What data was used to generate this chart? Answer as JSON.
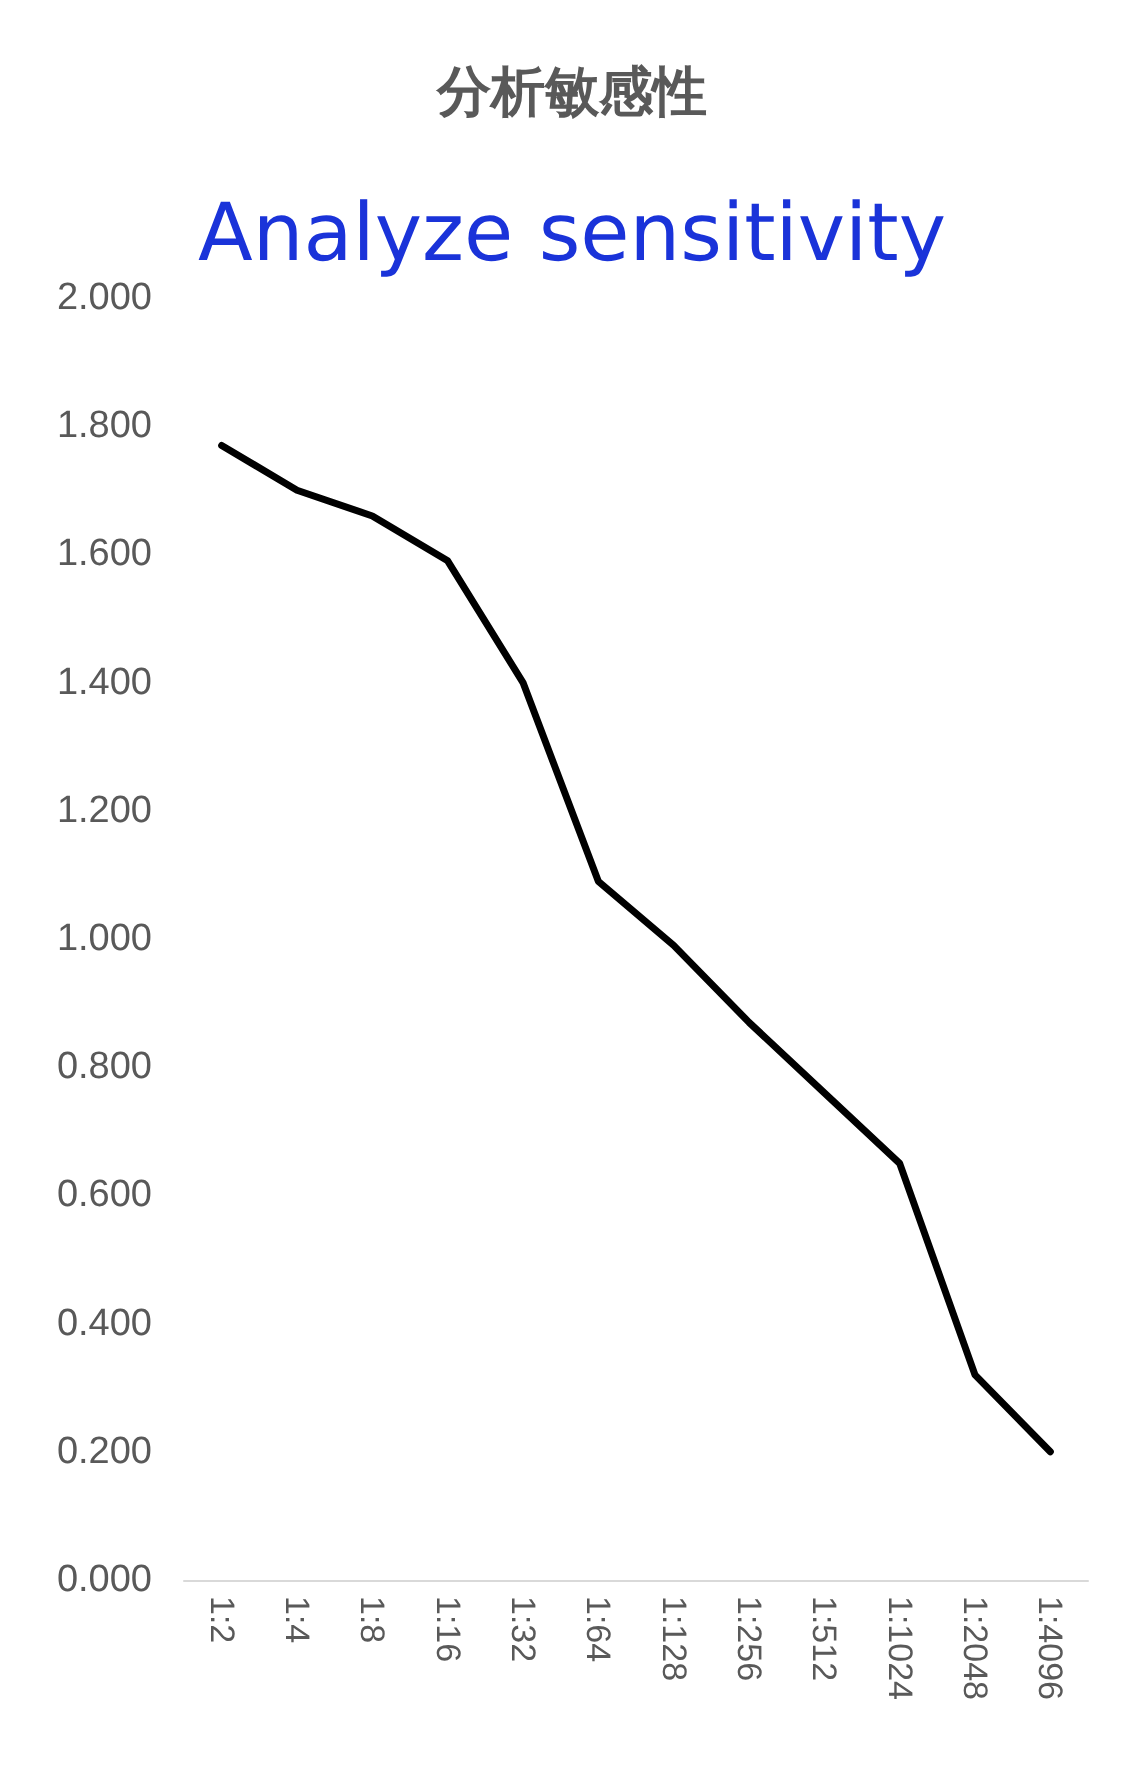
{
  "chart_data": {
    "type": "line",
    "title": "分析敏感性",
    "subtitle": "Analyze sensitivity",
    "categories": [
      "1:2",
      "1:4",
      "1:8",
      "1:16",
      "1:32",
      "1:64",
      "1:128",
      "1:256",
      "1:512",
      "1:1024",
      "1:2048",
      "1:4096"
    ],
    "series": [
      {
        "color": "#000000",
        "values": [
          1.77,
          1.7,
          1.66,
          1.59,
          1.4,
          1.09,
          0.99,
          0.87,
          0.76,
          0.65,
          0.32,
          0.2
        ]
      }
    ],
    "ylim": [
      0,
      2
    ],
    "yticks": [
      {
        "value": 0,
        "label": "0.000"
      },
      {
        "value": 0.2,
        "label": "0.200"
      },
      {
        "value": 0.4,
        "label": "0.400"
      },
      {
        "value": 0.6,
        "label": "0.600"
      },
      {
        "value": 0.8,
        "label": "0.800"
      },
      {
        "value": 1,
        "label": "1.000"
      },
      {
        "value": 1.2,
        "label": "1.200"
      },
      {
        "value": 1.4,
        "label": "1.400"
      },
      {
        "value": 1.6,
        "label": "1.600"
      },
      {
        "value": 1.8,
        "label": "1.800"
      },
      {
        "value": 2,
        "label": "2.000"
      }
    ],
    "grid": false,
    "marker": "none",
    "line_style": "solid"
  }
}
